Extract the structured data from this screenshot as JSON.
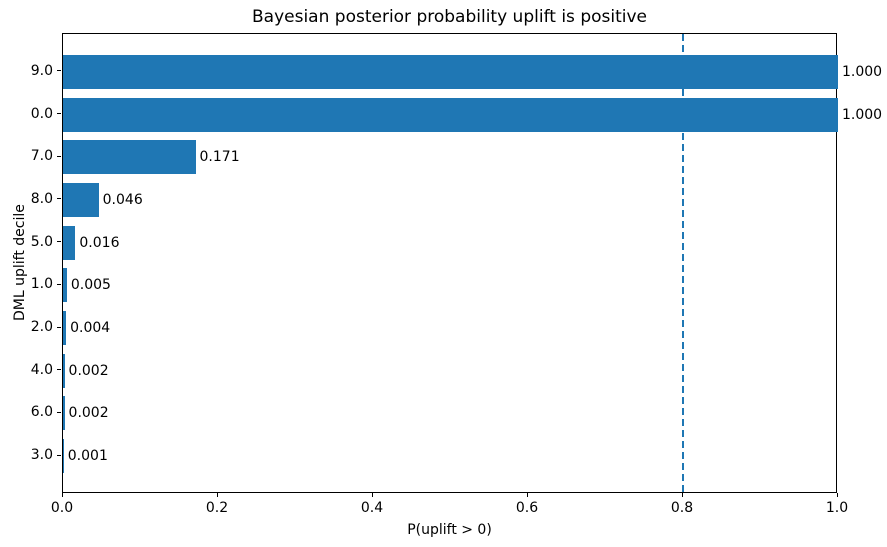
{
  "chart_data": {
    "type": "bar",
    "orientation": "horizontal",
    "title": "Bayesian posterior probability uplift is positive",
    "xlabel": "P(uplift > 0)",
    "ylabel": "DML uplift decile",
    "categories": [
      "9.0",
      "0.0",
      "7.0",
      "8.0",
      "5.0",
      "1.0",
      "2.0",
      "4.0",
      "6.0",
      "3.0"
    ],
    "values": [
      1.0,
      1.0,
      0.171,
      0.046,
      0.016,
      0.005,
      0.004,
      0.002,
      0.002,
      0.001
    ],
    "value_labels": [
      "1.000",
      "1.000",
      "0.171",
      "0.046",
      "0.016",
      "0.005",
      "0.004",
      "0.002",
      "0.002",
      "0.001"
    ],
    "xlim": [
      0.0,
      1.0
    ],
    "xticks": [
      0.0,
      0.2,
      0.4,
      0.6,
      0.8,
      1.0
    ],
    "xtick_labels": [
      "0.0",
      "0.2",
      "0.4",
      "0.6",
      "0.8",
      "1.0"
    ],
    "reference_line_x": 0.8,
    "bar_color": "#1f77b4",
    "reference_line_color": "#1f77b4",
    "reference_line_style": "dashed",
    "grid": false,
    "legend_position": "none"
  }
}
